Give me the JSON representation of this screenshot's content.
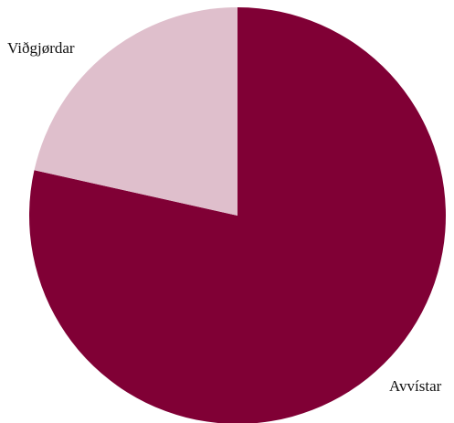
{
  "chart_data": {
    "type": "pie",
    "start": "12 o'clock",
    "direction": "clockwise",
    "slices": [
      {
        "label": "Avvístar",
        "value": 78.5,
        "color": "#800035"
      },
      {
        "label": "Viðgjørdar",
        "value": 21.5,
        "color": "#dfbfcc"
      }
    ]
  }
}
